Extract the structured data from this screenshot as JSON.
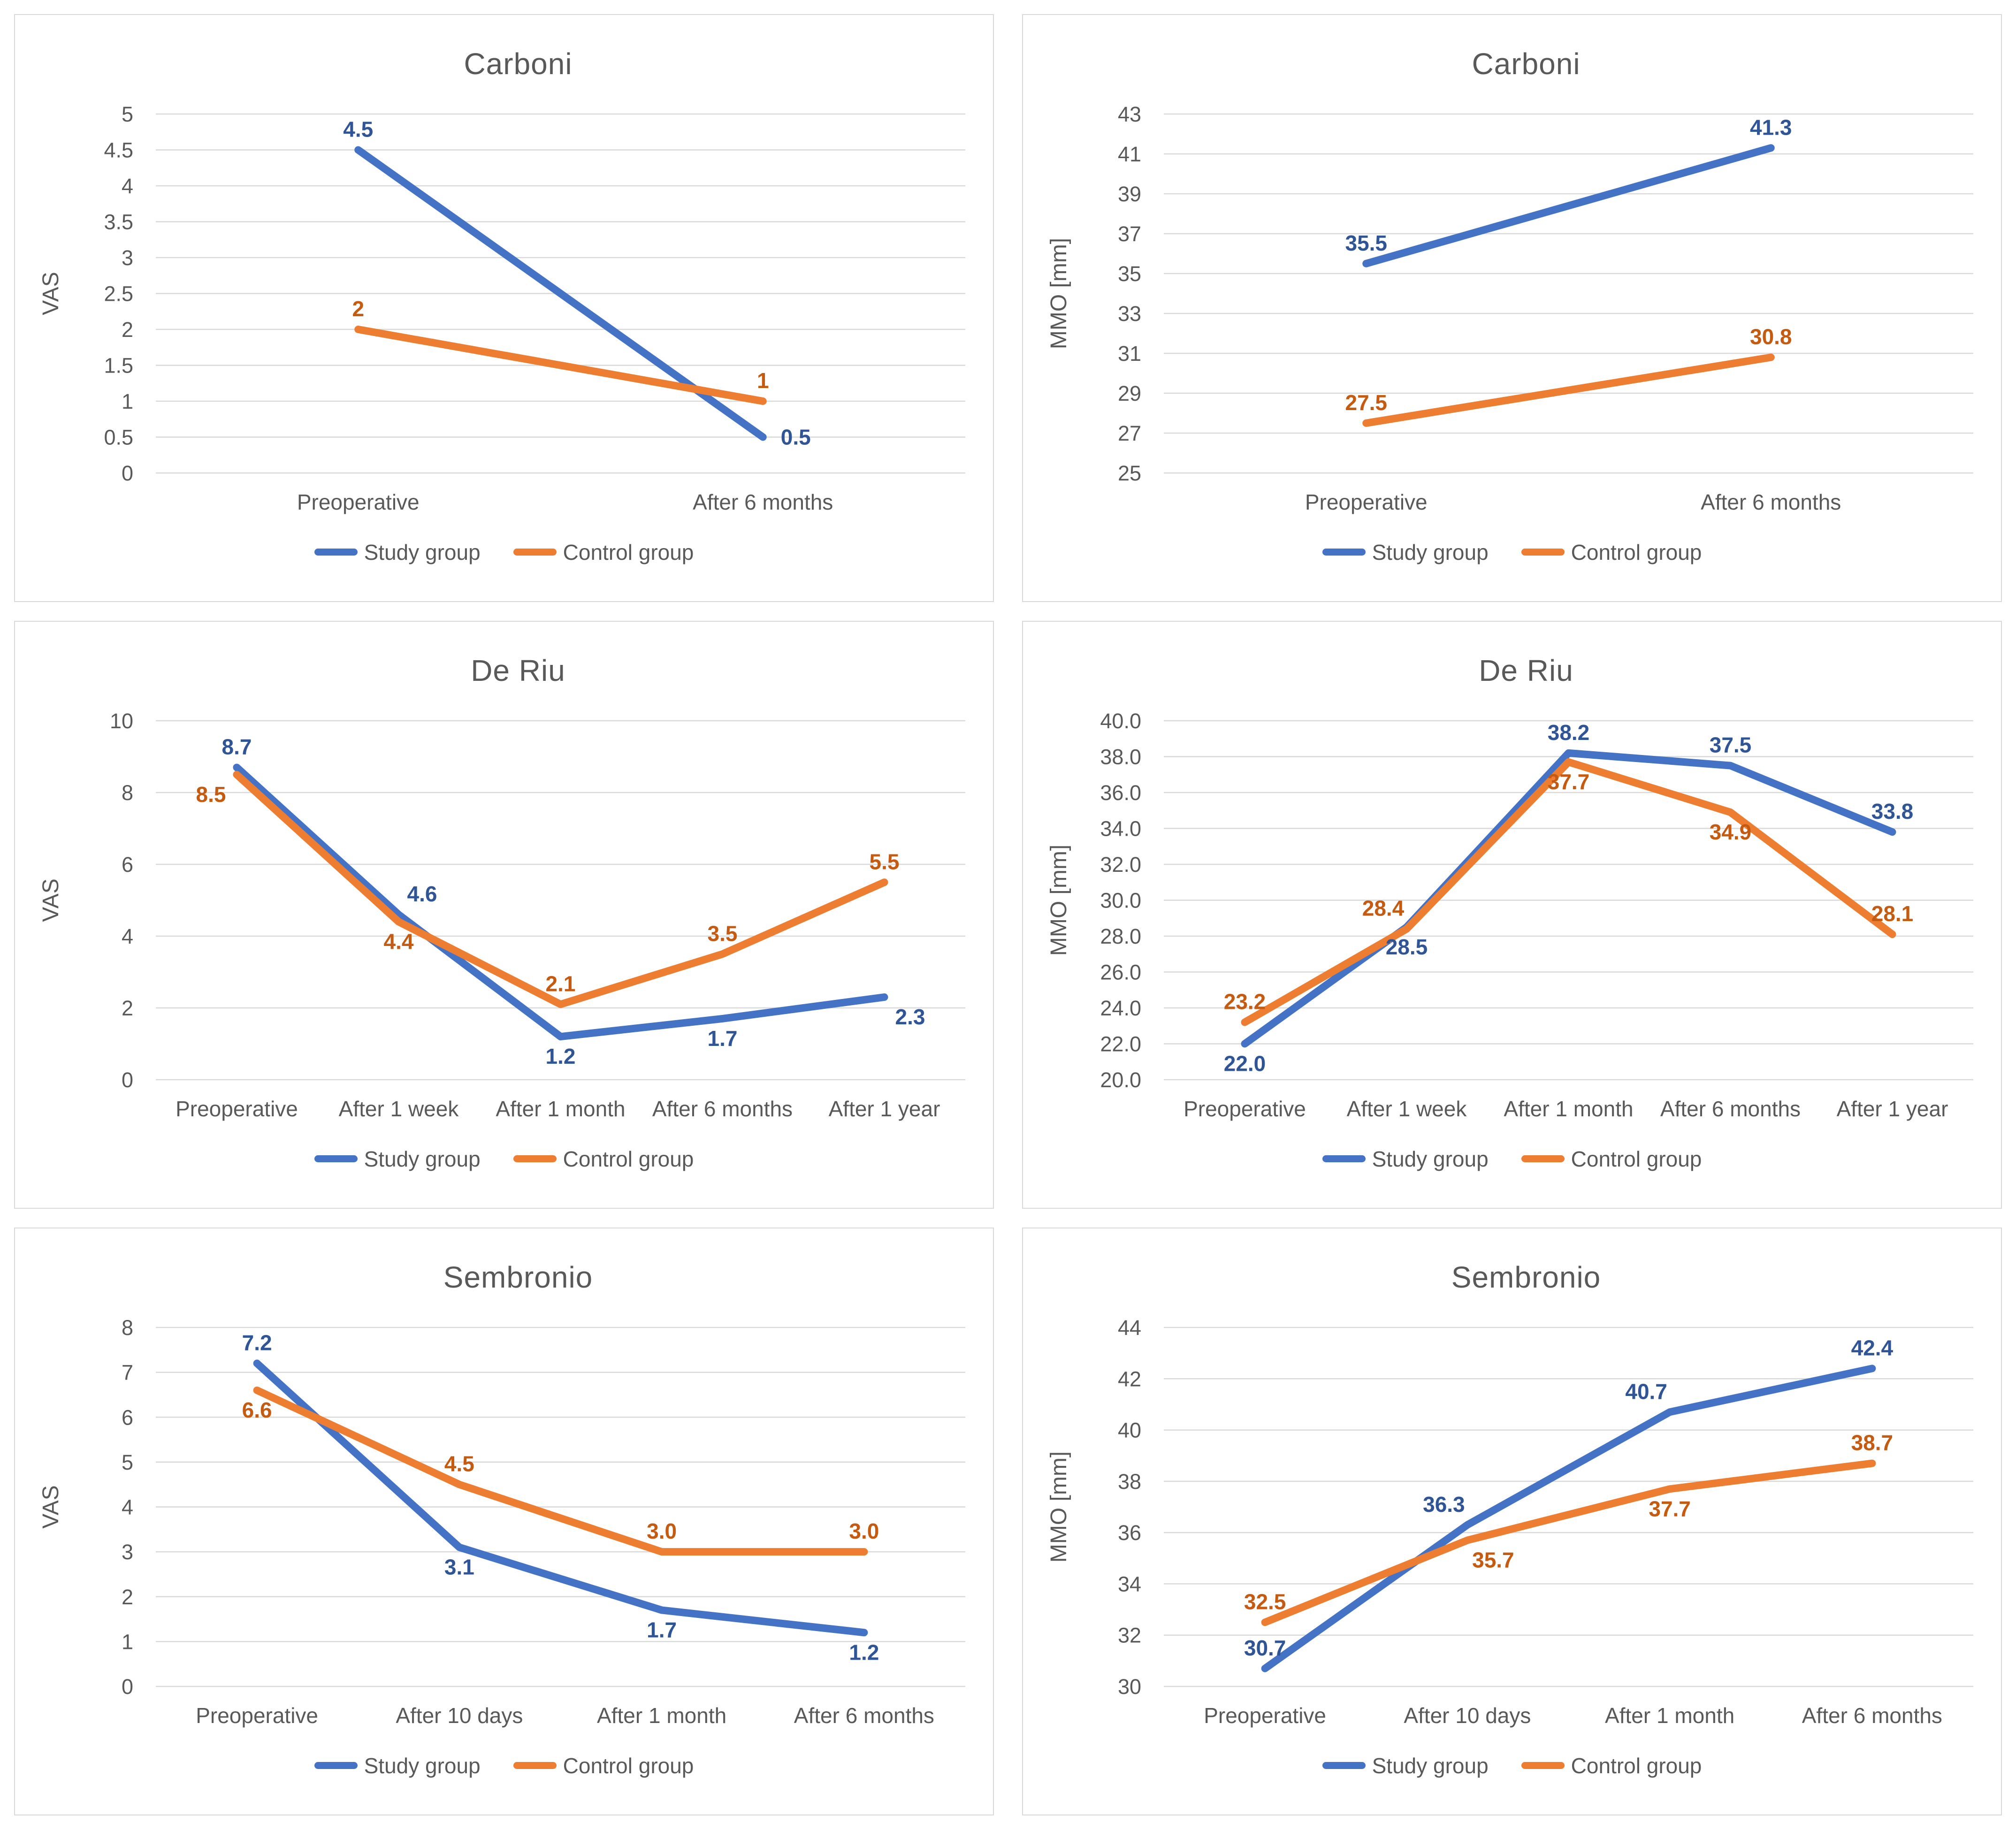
{
  "colors": {
    "study_line": "#4472C4",
    "control_line": "#ED7D31",
    "study_label": "#2F5597",
    "control_label": "#C55A11",
    "gridline": "#D9D9D9",
    "axis_text": "#595959",
    "title_text": "#595959",
    "panel_border": "#D9D9D9",
    "background": "#FFFFFF"
  },
  "chart_data": [
    {
      "id": "carboni-vas",
      "type": "line",
      "title": "Carboni",
      "ylabel": "VAS",
      "ylim": [
        0,
        5
      ],
      "ystep": 0.5,
      "ytick_decimals": null,
      "grid": true,
      "legend_position": "bottom",
      "categories": [
        "Preoperative",
        "After 6 months"
      ],
      "series": [
        {
          "name": "Study group",
          "color_key": "study",
          "values": [
            4.5,
            0.5
          ],
          "value_labels": [
            "4.5",
            "0.5"
          ],
          "label_positions": [
            "above",
            "right"
          ]
        },
        {
          "name": "Control group",
          "color_key": "control",
          "values": [
            2,
            1
          ],
          "value_labels": [
            "2",
            "1"
          ],
          "label_positions": [
            "above",
            "above"
          ]
        }
      ]
    },
    {
      "id": "carboni-mmo",
      "type": "line",
      "title": "Carboni",
      "ylabel": "MMO [mm]",
      "ylim": [
        25,
        43
      ],
      "ystep": 2,
      "ytick_decimals": null,
      "grid": true,
      "legend_position": "bottom",
      "categories": [
        "Preoperative",
        "After 6 months"
      ],
      "series": [
        {
          "name": "Study group",
          "color_key": "study",
          "values": [
            35.5,
            41.3
          ],
          "value_labels": [
            "35.5",
            "41.3"
          ],
          "label_positions": [
            "above",
            "above"
          ]
        },
        {
          "name": "Control group",
          "color_key": "control",
          "values": [
            27.5,
            30.8
          ],
          "value_labels": [
            "27.5",
            "30.8"
          ],
          "label_positions": [
            "above",
            "above"
          ]
        }
      ]
    },
    {
      "id": "deriu-vas",
      "type": "line",
      "title": "De Riu",
      "ylabel": "VAS",
      "ylim": [
        0,
        10
      ],
      "ystep": 2,
      "ytick_decimals": null,
      "grid": true,
      "legend_position": "bottom",
      "categories": [
        "Preoperative",
        "After 1 week",
        "After 1 month",
        "After 6 months",
        "After 1 year"
      ],
      "series": [
        {
          "name": "Study group",
          "color_key": "study",
          "values": [
            8.7,
            4.6,
            1.2,
            1.7,
            2.3
          ],
          "value_labels": [
            "8.7",
            "4.6",
            "1.2",
            "1.7",
            "2.3"
          ],
          "label_positions": [
            "above",
            "above-right",
            "below",
            "below",
            "below-right"
          ]
        },
        {
          "name": "Control group",
          "color_key": "control",
          "values": [
            8.5,
            4.4,
            2.1,
            3.5,
            5.5
          ],
          "value_labels": [
            "8.5",
            "4.4",
            "2.1",
            "3.5",
            "5.5"
          ],
          "label_positions": [
            "below-left",
            "below",
            "above",
            "above",
            "above"
          ]
        }
      ]
    },
    {
      "id": "deriu-mmo",
      "type": "line",
      "title": "De Riu",
      "ylabel": "MMO [mm]",
      "ylim": [
        20,
        40
      ],
      "ystep": 2,
      "ytick_decimals": 1,
      "grid": true,
      "legend_position": "bottom",
      "categories": [
        "Preoperative",
        "After 1 week",
        "After 1 month",
        "After 6 months",
        "After 1 year"
      ],
      "series": [
        {
          "name": "Study group",
          "color_key": "study",
          "values": [
            22.0,
            28.5,
            38.2,
            37.5,
            33.8
          ],
          "value_labels": [
            "22.0",
            "28.5",
            "38.2",
            "37.5",
            "33.8"
          ],
          "label_positions": [
            "below",
            "below",
            "above",
            "above",
            "above"
          ]
        },
        {
          "name": "Control group",
          "color_key": "control",
          "values": [
            23.2,
            28.4,
            37.7,
            34.9,
            28.1
          ],
          "value_labels": [
            "23.2",
            "28.4",
            "37.7",
            "34.9",
            "28.1"
          ],
          "label_positions": [
            "above",
            "above-left",
            "below",
            "below",
            "above"
          ]
        }
      ]
    },
    {
      "id": "sembronio-vas",
      "type": "line",
      "title": "Sembronio",
      "ylabel": "VAS",
      "ylim": [
        0,
        8
      ],
      "ystep": 1,
      "ytick_decimals": null,
      "grid": true,
      "legend_position": "bottom",
      "categories": [
        "Preoperative",
        "After 10 days",
        "After 1 month",
        "After 6 months"
      ],
      "series": [
        {
          "name": "Study group",
          "color_key": "study",
          "values": [
            7.2,
            3.1,
            1.7,
            1.2
          ],
          "value_labels": [
            "7.2",
            "3.1",
            "1.7",
            "1.2"
          ],
          "label_positions": [
            "above",
            "below",
            "below",
            "below"
          ]
        },
        {
          "name": "Control group",
          "color_key": "control",
          "values": [
            6.6,
            4.5,
            3.0,
            3.0
          ],
          "value_labels": [
            "6.6",
            "4.5",
            "3.0",
            "3.0"
          ],
          "label_positions": [
            "below",
            "above",
            "above",
            "above"
          ]
        }
      ]
    },
    {
      "id": "sembronio-mmo",
      "type": "line",
      "title": "Sembronio",
      "ylabel": "MMO [mm]",
      "ylim": [
        30,
        44
      ],
      "ystep": 2,
      "ytick_decimals": null,
      "grid": true,
      "legend_position": "bottom",
      "categories": [
        "Preoperative",
        "After 10 days",
        "After 1 month",
        "After 6 months"
      ],
      "series": [
        {
          "name": "Study group",
          "color_key": "study",
          "values": [
            30.7,
            36.3,
            40.7,
            42.4
          ],
          "value_labels": [
            "30.7",
            "36.3",
            "40.7",
            "42.4"
          ],
          "label_positions": [
            "above",
            "above-left",
            "above-left",
            "above"
          ]
        },
        {
          "name": "Control group",
          "color_key": "control",
          "values": [
            32.5,
            35.7,
            37.7,
            38.7
          ],
          "value_labels": [
            "32.5",
            "35.7",
            "37.7",
            "38.7"
          ],
          "label_positions": [
            "above",
            "below-right",
            "below",
            "above"
          ]
        }
      ]
    }
  ]
}
